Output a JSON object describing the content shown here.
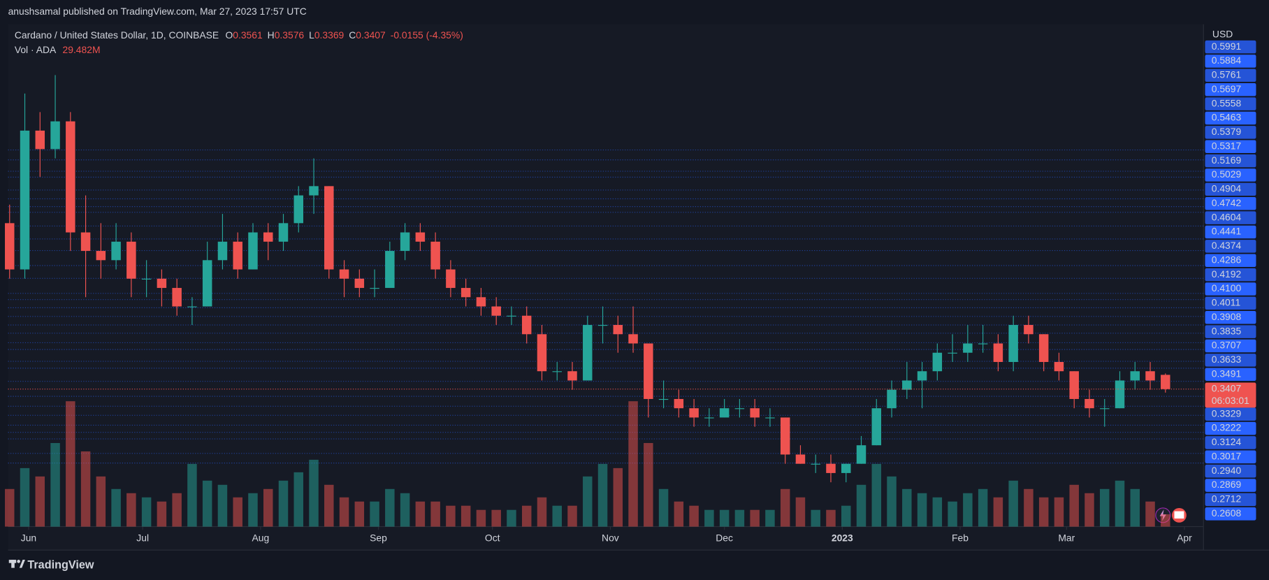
{
  "header": "anushsamal published on TradingView.com, Mar 27, 2023 17:57 UTC",
  "footer": "TradingView",
  "chart_data": {
    "type": "candlestick",
    "title": "Cardano / United States Dollar, 1D, COINBASE",
    "legend_labels": [
      "O",
      "H",
      "L",
      "C"
    ],
    "change_label": "-0.0155 (-4.35%)",
    "volume_title": "Vol · ADA",
    "volume_label": "29.482M",
    "y_axis_label": "USD",
    "countdown": "06:03:01",
    "up_color": "#26a69a",
    "down_color": "#ef5350",
    "price_line_color": "#2962ff",
    "open": [
      0.52,
      0.47,
      0.62,
      0.6,
      0.63,
      0.51,
      0.49,
      0.48,
      0.5,
      0.46,
      0.46,
      0.45,
      0.43,
      0.43,
      0.48,
      0.5,
      0.47,
      0.51,
      0.5,
      0.52,
      0.55,
      0.56,
      0.47,
      0.46,
      0.45,
      0.45,
      0.49,
      0.51,
      0.5,
      0.47,
      0.45,
      0.44,
      0.43,
      0.42,
      0.42,
      0.4,
      0.36,
      0.36,
      0.35,
      0.41,
      0.41,
      0.4,
      0.39,
      0.33,
      0.33,
      0.32,
      0.31,
      0.31,
      0.32,
      0.32,
      0.31,
      0.31,
      0.27,
      0.26,
      0.26,
      0.25,
      0.26,
      0.28,
      0.32,
      0.34,
      0.35,
      0.36,
      0.38,
      0.38,
      0.39,
      0.39,
      0.37,
      0.41,
      0.4,
      0.37,
      0.36,
      0.33,
      0.32,
      0.32,
      0.35,
      0.36,
      0.3561
    ],
    "high": [
      0.54,
      0.66,
      0.64,
      0.68,
      0.64,
      0.55,
      0.52,
      0.52,
      0.51,
      0.48,
      0.47,
      0.46,
      0.44,
      0.5,
      0.53,
      0.51,
      0.52,
      0.52,
      0.53,
      0.56,
      0.59,
      0.56,
      0.48,
      0.47,
      0.47,
      0.5,
      0.52,
      0.52,
      0.51,
      0.48,
      0.46,
      0.45,
      0.44,
      0.43,
      0.43,
      0.41,
      0.37,
      0.37,
      0.42,
      0.43,
      0.42,
      0.43,
      0.39,
      0.35,
      0.34,
      0.33,
      0.32,
      0.33,
      0.33,
      0.33,
      0.32,
      0.31,
      0.28,
      0.27,
      0.27,
      0.26,
      0.29,
      0.33,
      0.35,
      0.37,
      0.37,
      0.39,
      0.4,
      0.41,
      0.41,
      0.4,
      0.42,
      0.42,
      0.4,
      0.38,
      0.36,
      0.34,
      0.33,
      0.36,
      0.37,
      0.37,
      0.3576
    ],
    "low": [
      0.46,
      0.46,
      0.57,
      0.59,
      0.49,
      0.44,
      0.46,
      0.47,
      0.44,
      0.44,
      0.43,
      0.42,
      0.41,
      0.43,
      0.47,
      0.46,
      0.47,
      0.48,
      0.49,
      0.51,
      0.53,
      0.46,
      0.44,
      0.44,
      0.44,
      0.45,
      0.48,
      0.49,
      0.46,
      0.44,
      0.43,
      0.42,
      0.41,
      0.41,
      0.39,
      0.35,
      0.35,
      0.34,
      0.35,
      0.39,
      0.38,
      0.38,
      0.31,
      0.32,
      0.31,
      0.3,
      0.3,
      0.31,
      0.31,
      0.3,
      0.3,
      0.26,
      0.26,
      0.25,
      0.24,
      0.24,
      0.26,
      0.28,
      0.31,
      0.33,
      0.32,
      0.35,
      0.37,
      0.37,
      0.38,
      0.36,
      0.36,
      0.39,
      0.36,
      0.35,
      0.32,
      0.31,
      0.3,
      0.32,
      0.34,
      0.34,
      0.3369
    ],
    "close": [
      0.47,
      0.62,
      0.6,
      0.63,
      0.51,
      0.49,
      0.48,
      0.5,
      0.46,
      0.46,
      0.45,
      0.43,
      0.43,
      0.48,
      0.5,
      0.47,
      0.51,
      0.5,
      0.52,
      0.55,
      0.56,
      0.47,
      0.46,
      0.45,
      0.45,
      0.49,
      0.51,
      0.5,
      0.47,
      0.45,
      0.44,
      0.43,
      0.42,
      0.42,
      0.4,
      0.36,
      0.36,
      0.35,
      0.41,
      0.41,
      0.4,
      0.39,
      0.33,
      0.33,
      0.32,
      0.31,
      0.31,
      0.32,
      0.32,
      0.31,
      0.31,
      0.27,
      0.26,
      0.26,
      0.25,
      0.26,
      0.28,
      0.32,
      0.34,
      0.35,
      0.36,
      0.38,
      0.38,
      0.39,
      0.39,
      0.37,
      0.41,
      0.4,
      0.37,
      0.36,
      0.33,
      0.32,
      0.32,
      0.35,
      0.36,
      0.35,
      0.3407
    ],
    "volume": [
      90,
      140,
      120,
      200,
      300,
      180,
      120,
      90,
      80,
      70,
      60,
      80,
      150,
      110,
      100,
      70,
      80,
      90,
      110,
      130,
      160,
      100,
      70,
      60,
      60,
      90,
      80,
      60,
      60,
      50,
      50,
      40,
      40,
      40,
      50,
      70,
      50,
      50,
      120,
      150,
      140,
      300,
      200,
      90,
      60,
      50,
      40,
      40,
      40,
      40,
      40,
      90,
      70,
      40,
      40,
      50,
      100,
      150,
      120,
      90,
      80,
      70,
      60,
      80,
      90,
      70,
      110,
      90,
      70,
      70,
      100,
      80,
      90,
      110,
      90,
      60,
      29.482
    ],
    "xlim": [
      -0.1,
      78.5
    ],
    "xticks": [
      {
        "value": 1.25,
        "label": "Jun"
      },
      {
        "value": 8.75,
        "label": "Jul"
      },
      {
        "value": 16.5,
        "label": "Aug"
      },
      {
        "value": 24.25,
        "label": "Sep"
      },
      {
        "value": 31.75,
        "label": "Oct"
      },
      {
        "value": 39.5,
        "label": "Nov"
      },
      {
        "value": 47,
        "label": "Dec"
      },
      {
        "value": 54.75,
        "label": "2023"
      },
      {
        "value": 62.5,
        "label": "Feb"
      },
      {
        "value": 69.5,
        "label": "Mar"
      },
      {
        "value": 77.25,
        "label": "Apr"
      }
    ],
    "ylim": [
      0.1921,
      0.7349
    ],
    "price_lines": [
      {
        "value": 0.5991,
        "label": "0.5991"
      },
      {
        "value": 0.5884,
        "label": "0.5884"
      },
      {
        "value": 0.5761,
        "label": "0.5761"
      },
      {
        "value": 0.5697,
        "label": "0.5697"
      },
      {
        "value": 0.5558,
        "label": "0.5558"
      },
      {
        "value": 0.5463,
        "label": "0.5463"
      },
      {
        "value": 0.5379,
        "label": "0.5379"
      },
      {
        "value": 0.5317,
        "label": "0.5317"
      },
      {
        "value": 0.5169,
        "label": "0.5169"
      },
      {
        "value": 0.5029,
        "label": "0.5029"
      },
      {
        "value": 0.4904,
        "label": "0.4904"
      },
      {
        "value": 0.4742,
        "label": "0.4742"
      },
      {
        "value": 0.4604,
        "label": "0.4604"
      },
      {
        "value": 0.4441,
        "label": "0.4441"
      },
      {
        "value": 0.4374,
        "label": "0.4374"
      },
      {
        "value": 0.4286,
        "label": "0.4286"
      },
      {
        "value": 0.4192,
        "label": "0.4192"
      },
      {
        "value": 0.41,
        "label": "0.4100"
      },
      {
        "value": 0.4011,
        "label": "0.4011"
      },
      {
        "value": 0.3908,
        "label": "0.3908"
      },
      {
        "value": 0.3835,
        "label": "0.3835"
      },
      {
        "value": 0.3707,
        "label": "0.3707"
      },
      {
        "value": 0.3633,
        "label": "0.3633"
      },
      {
        "value": 0.3491,
        "label": "0.3491"
      },
      {
        "value": 0.3329,
        "label": "0.3329"
      },
      {
        "value": 0.3222,
        "label": "0.3222"
      },
      {
        "value": 0.3124,
        "label": "0.3124"
      },
      {
        "value": 0.3017,
        "label": "0.3017"
      },
      {
        "value": 0.294,
        "label": "0.2940"
      },
      {
        "value": 0.2869,
        "label": "0.2869"
      },
      {
        "value": 0.2712,
        "label": "0.2712"
      },
      {
        "value": 0.2608,
        "label": "0.2608"
      }
    ]
  }
}
